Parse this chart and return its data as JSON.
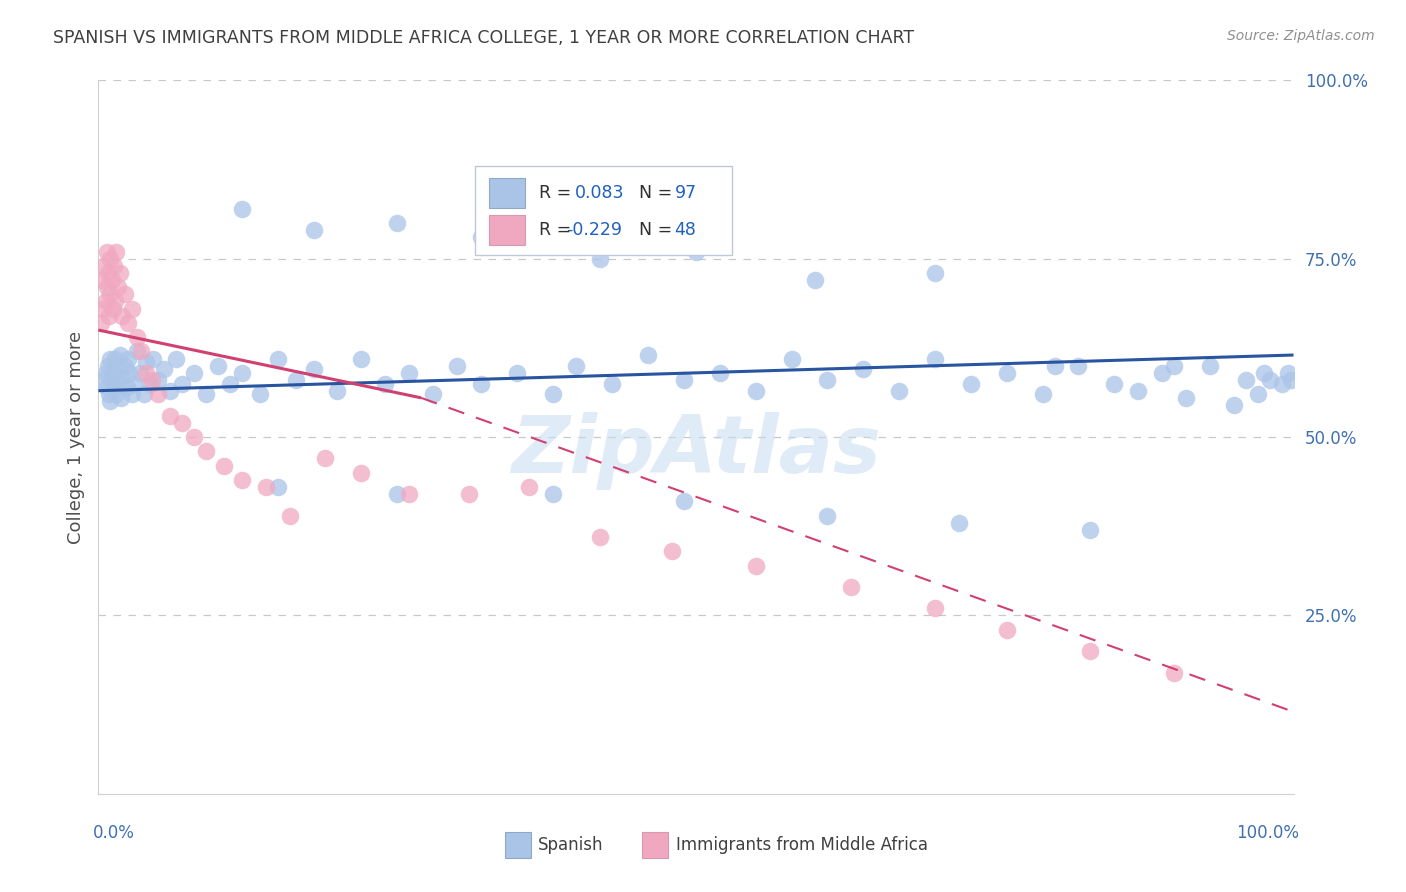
{
  "title": "SPANISH VS IMMIGRANTS FROM MIDDLE AFRICA COLLEGE, 1 YEAR OR MORE CORRELATION CHART",
  "source": "Source: ZipAtlas.com",
  "ylabel": "College, 1 year or more",
  "watermark": "ZipAtlas",
  "blue_color": "#aac4e8",
  "pink_color": "#f0a8c0",
  "blue_line_color": "#2955a0",
  "pink_line_color": "#d04070",
  "bg_color": "#ffffff",
  "grid_color": "#c8c8c8",
  "title_color": "#404040",
  "source_color": "#909090",
  "axis_label_color": "#505050",
  "tick_color": "#4070b0",
  "legend_r1": "0.083",
  "legend_n1": "97",
  "legend_r2": "-0.229",
  "legend_n2": "48",
  "blue_x": [
    0.004,
    0.006,
    0.007,
    0.008,
    0.009,
    0.01,
    0.01,
    0.011,
    0.012,
    0.013,
    0.014,
    0.015,
    0.015,
    0.016,
    0.018,
    0.019,
    0.02,
    0.022,
    0.024,
    0.025,
    0.026,
    0.028,
    0.03,
    0.032,
    0.035,
    0.038,
    0.04,
    0.043,
    0.046,
    0.05,
    0.055,
    0.06,
    0.065,
    0.07,
    0.08,
    0.09,
    0.1,
    0.11,
    0.12,
    0.135,
    0.15,
    0.165,
    0.18,
    0.2,
    0.22,
    0.24,
    0.26,
    0.28,
    0.3,
    0.32,
    0.35,
    0.38,
    0.4,
    0.43,
    0.46,
    0.49,
    0.52,
    0.55,
    0.58,
    0.61,
    0.64,
    0.67,
    0.7,
    0.73,
    0.76,
    0.79,
    0.82,
    0.85,
    0.87,
    0.89,
    0.91,
    0.93,
    0.95,
    0.96,
    0.97,
    0.975,
    0.98,
    0.99,
    0.995,
    0.998,
    0.12,
    0.18,
    0.25,
    0.32,
    0.42,
    0.5,
    0.6,
    0.7,
    0.8,
    0.9,
    0.15,
    0.25,
    0.38,
    0.49,
    0.61,
    0.72,
    0.83
  ],
  "blue_y": [
    0.58,
    0.59,
    0.57,
    0.6,
    0.56,
    0.61,
    0.55,
    0.58,
    0.59,
    0.57,
    0.61,
    0.56,
    0.595,
    0.575,
    0.615,
    0.555,
    0.585,
    0.6,
    0.57,
    0.61,
    0.59,
    0.56,
    0.575,
    0.62,
    0.59,
    0.56,
    0.605,
    0.575,
    0.61,
    0.58,
    0.595,
    0.565,
    0.61,
    0.575,
    0.59,
    0.56,
    0.6,
    0.575,
    0.59,
    0.56,
    0.61,
    0.58,
    0.595,
    0.565,
    0.61,
    0.575,
    0.59,
    0.56,
    0.6,
    0.575,
    0.59,
    0.56,
    0.6,
    0.575,
    0.615,
    0.58,
    0.59,
    0.565,
    0.61,
    0.58,
    0.595,
    0.565,
    0.61,
    0.575,
    0.59,
    0.56,
    0.6,
    0.575,
    0.565,
    0.59,
    0.555,
    0.6,
    0.545,
    0.58,
    0.56,
    0.59,
    0.58,
    0.575,
    0.59,
    0.58,
    0.82,
    0.79,
    0.8,
    0.78,
    0.75,
    0.76,
    0.72,
    0.73,
    0.6,
    0.6,
    0.43,
    0.42,
    0.42,
    0.41,
    0.39,
    0.38,
    0.37
  ],
  "pink_x": [
    0.002,
    0.003,
    0.004,
    0.005,
    0.006,
    0.007,
    0.007,
    0.008,
    0.009,
    0.01,
    0.01,
    0.011,
    0.012,
    0.013,
    0.014,
    0.015,
    0.016,
    0.018,
    0.02,
    0.022,
    0.025,
    0.028,
    0.032,
    0.036,
    0.04,
    0.045,
    0.05,
    0.06,
    0.07,
    0.08,
    0.09,
    0.105,
    0.12,
    0.14,
    0.16,
    0.19,
    0.22,
    0.26,
    0.31,
    0.36,
    0.42,
    0.48,
    0.55,
    0.63,
    0.7,
    0.76,
    0.83,
    0.9
  ],
  "pink_y": [
    0.66,
    0.72,
    0.68,
    0.74,
    0.69,
    0.76,
    0.71,
    0.73,
    0.67,
    0.75,
    0.7,
    0.72,
    0.68,
    0.74,
    0.69,
    0.76,
    0.71,
    0.73,
    0.67,
    0.7,
    0.66,
    0.68,
    0.64,
    0.62,
    0.59,
    0.58,
    0.56,
    0.53,
    0.52,
    0.5,
    0.48,
    0.46,
    0.44,
    0.43,
    0.39,
    0.47,
    0.45,
    0.42,
    0.42,
    0.43,
    0.36,
    0.34,
    0.32,
    0.29,
    0.26,
    0.23,
    0.2,
    0.17
  ],
  "blue_line": [
    0.0,
    1.0,
    0.565,
    0.615
  ],
  "pink_line_solid": [
    0.0,
    0.27,
    0.65,
    0.555
  ],
  "pink_line_dashed": [
    0.27,
    1.0,
    0.555,
    0.115
  ]
}
